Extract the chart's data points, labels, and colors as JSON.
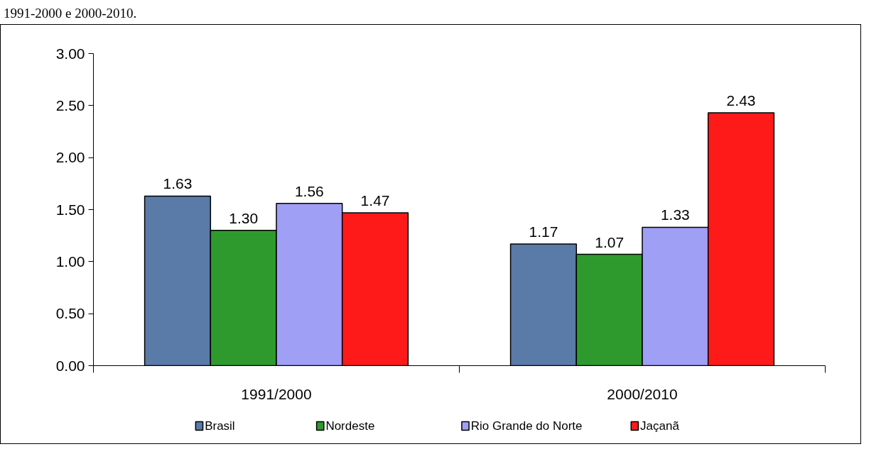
{
  "chart_data": {
    "type": "bar",
    "annotations": [
      "1991-2000 e 2000-2010."
    ],
    "categories": [
      "1991/2000",
      "2000/2010"
    ],
    "series": [
      {
        "name": "Brasil",
        "color": "#5a7aa8",
        "values": [
          1.63,
          1.17
        ],
        "value_labels": [
          "1.63",
          "1.17"
        ]
      },
      {
        "name": "Nordeste",
        "color": "#2e9a2e",
        "values": [
          1.3,
          1.07
        ],
        "value_labels": [
          "1.30",
          "1.07"
        ]
      },
      {
        "name": "Rio Grande do Norte",
        "color": "#9f9ff5",
        "values": [
          1.56,
          1.33
        ],
        "value_labels": [
          "1.56",
          "1.33"
        ]
      },
      {
        "name": "Jaçanã",
        "color": "#ff1a1a",
        "values": [
          1.47,
          2.43
        ],
        "value_labels": [
          "1.47",
          "2.43"
        ]
      }
    ],
    "ylim": [
      0,
      3
    ],
    "yticks": [
      {
        "value": 0,
        "label": "0.00"
      },
      {
        "value": 0.5,
        "label": "0.50"
      },
      {
        "value": 1,
        "label": "1.00"
      },
      {
        "value": 1.5,
        "label": "1.50"
      },
      {
        "value": 2,
        "label": "2.00"
      },
      {
        "value": 2.5,
        "label": "2.50"
      },
      {
        "value": 3,
        "label": "3.00"
      }
    ],
    "grid": false,
    "legend": "bottom"
  }
}
